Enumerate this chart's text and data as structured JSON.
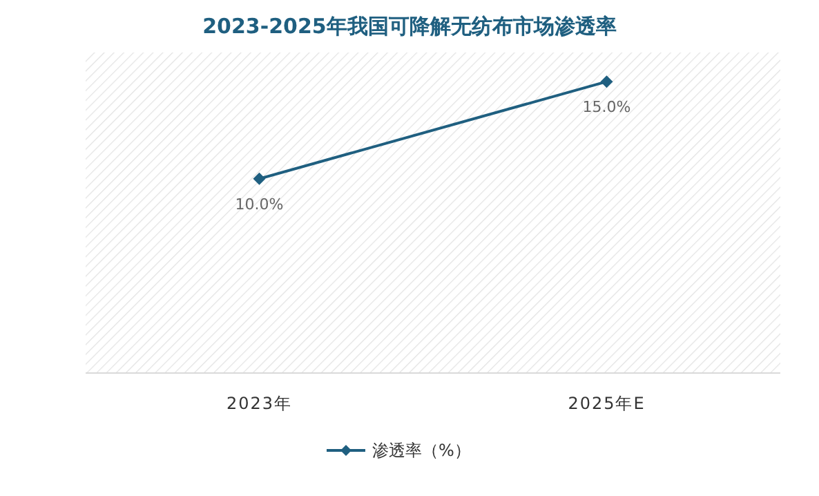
{
  "chart_data": {
    "type": "line",
    "title": "2023-2025年我国可降解无纺布市场渗透率",
    "categories": [
      "2023年",
      "2025年E"
    ],
    "relative": false,
    "series": [
      {
        "name": "渗透率（%）",
        "color": "#1f5f80",
        "values": [
          10.0,
          15.0
        ],
        "value_labels": [
          "10.0%",
          "15.0%"
        ]
      }
    ],
    "legend": "bottom",
    "marker": "diamond",
    "line_style": "solid",
    "tick_labels": "x"
  }
}
